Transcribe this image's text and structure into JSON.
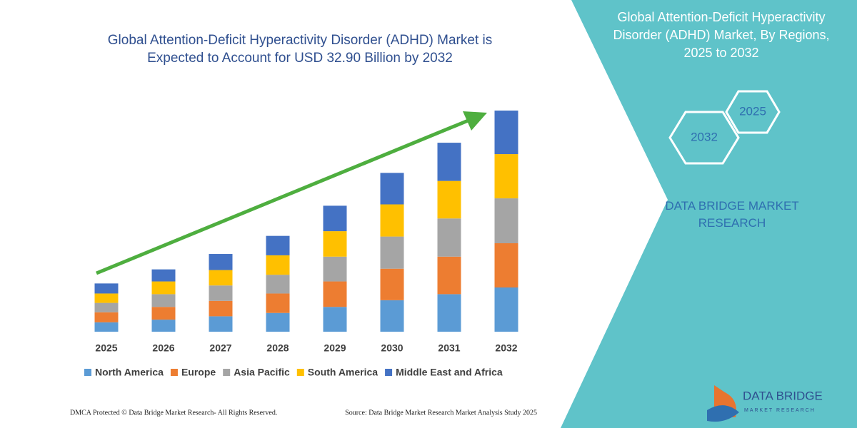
{
  "chart_data": {
    "type": "stacked_bar",
    "title": "Global Attention-Deficit Hyperactivity Disorder (ADHD) Market is Expected to Account for USD 32.90 Billion by 2032",
    "categories": [
      "2025",
      "2026",
      "2027",
      "2028",
      "2029",
      "2030",
      "2031",
      "2032"
    ],
    "series": [
      {
        "name": "North America",
        "color": "#5b9bd5",
        "values": [
          1.4,
          1.8,
          2.3,
          2.8,
          3.7,
          4.7,
          5.6,
          6.6
        ]
      },
      {
        "name": "Europe",
        "color": "#ed7d31",
        "values": [
          1.5,
          1.9,
          2.3,
          2.9,
          3.8,
          4.7,
          5.6,
          6.6
        ]
      },
      {
        "name": "Asia Pacific",
        "color": "#a5a5a5",
        "values": [
          1.4,
          1.9,
          2.3,
          2.8,
          3.7,
          4.8,
          5.7,
          6.7
        ]
      },
      {
        "name": "South America",
        "color": "#ffc000",
        "values": [
          1.4,
          1.9,
          2.3,
          2.9,
          3.8,
          4.8,
          5.6,
          6.6
        ]
      },
      {
        "name": "Middle East and Africa",
        "color": "#4472c4",
        "values": [
          1.5,
          1.8,
          2.4,
          2.9,
          3.8,
          4.7,
          5.7,
          6.5
        ]
      }
    ],
    "ylim": [
      0,
      33
    ]
  },
  "panel": {
    "title": "Global Attention-Deficit Hyperactivity Disorder (ADHD) Market, By Regions, 2025 to 2032",
    "hex_labels": [
      "2025",
      "2032"
    ],
    "brand": "DATA BRIDGE MARKET RESEARCH"
  },
  "logo": {
    "name": "DATA BRIDGE",
    "tagline": "MARKET RESEARCH"
  },
  "footer": {
    "left": "DMCA Protected © Data Bridge Market Research-  All Rights Reserved.",
    "right": "Source: Data Bridge Market Research  Market Analysis Study 2025"
  }
}
